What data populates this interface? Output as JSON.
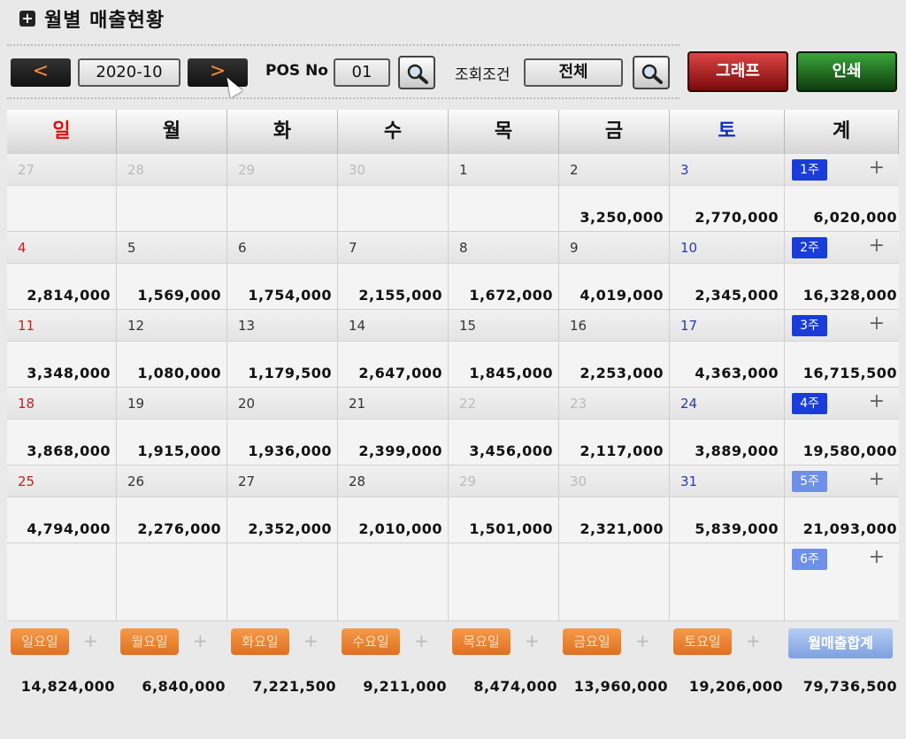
{
  "window": {
    "title": "월별 매출현황"
  },
  "toolbar": {
    "prev_label": "<",
    "next_label": ">",
    "month": "2020-10",
    "pos_label": "POS No",
    "pos_value": "01",
    "condition_label": "조회조건",
    "condition_value": "전체",
    "graph_label": "그래프",
    "print_label": "인쇄"
  },
  "weekdays": [
    "일",
    "월",
    "화",
    "수",
    "목",
    "금",
    "토",
    "계"
  ],
  "weeks": [
    {
      "badge": "1주",
      "total": "6,020,000",
      "days": [
        {
          "num": "27",
          "amount": ""
        },
        {
          "num": "28",
          "amount": ""
        },
        {
          "num": "29",
          "amount": ""
        },
        {
          "num": "30",
          "amount": ""
        },
        {
          "num": "1",
          "amount": ""
        },
        {
          "num": "2",
          "amount": "3,250,000"
        },
        {
          "num": "3",
          "amount": "2,770,000"
        }
      ]
    },
    {
      "badge": "2주",
      "total": "16,328,000",
      "days": [
        {
          "num": "4",
          "amount": "2,814,000"
        },
        {
          "num": "5",
          "amount": "1,569,000"
        },
        {
          "num": "6",
          "amount": "1,754,000"
        },
        {
          "num": "7",
          "amount": "2,155,000"
        },
        {
          "num": "8",
          "amount": "1,672,000"
        },
        {
          "num": "9",
          "amount": "4,019,000"
        },
        {
          "num": "10",
          "amount": "2,345,000"
        }
      ]
    },
    {
      "badge": "3주",
      "total": "16,715,500",
      "days": [
        {
          "num": "11",
          "amount": "3,348,000"
        },
        {
          "num": "12",
          "amount": "1,080,000"
        },
        {
          "num": "13",
          "amount": "1,179,500"
        },
        {
          "num": "14",
          "amount": "2,647,000"
        },
        {
          "num": "15",
          "amount": "1,845,000"
        },
        {
          "num": "16",
          "amount": "2,253,000"
        },
        {
          "num": "17",
          "amount": "4,363,000"
        }
      ]
    },
    {
      "badge": "4주",
      "total": "19,580,000",
      "days": [
        {
          "num": "18",
          "amount": "3,868,000"
        },
        {
          "num": "19",
          "amount": "1,915,000"
        },
        {
          "num": "20",
          "amount": "1,936,000"
        },
        {
          "num": "21",
          "amount": "2,399,000"
        },
        {
          "num": "22",
          "amount": "3,456,000"
        },
        {
          "num": "23",
          "amount": "2,117,000"
        },
        {
          "num": "24",
          "amount": "3,889,000"
        }
      ]
    },
    {
      "badge": "5주",
      "total": "21,093,000",
      "days": [
        {
          "num": "25",
          "amount": "4,794,000"
        },
        {
          "num": "26",
          "amount": "2,276,000"
        },
        {
          "num": "27",
          "amount": "2,352,000"
        },
        {
          "num": "28",
          "amount": "2,010,000"
        },
        {
          "num": "29",
          "amount": "1,501,000"
        },
        {
          "num": "30",
          "amount": "2,321,000"
        },
        {
          "num": "31",
          "amount": "5,839,000"
        }
      ]
    },
    {
      "badge": "6주"
    }
  ],
  "weekday_totals": [
    {
      "label": "일요일",
      "amount": "14,824,000"
    },
    {
      "label": "월요일",
      "amount": "6,840,000"
    },
    {
      "label": "화요일",
      "amount": "7,221,500"
    },
    {
      "label": "수요일",
      "amount": "9,211,000"
    },
    {
      "label": "목요일",
      "amount": "8,474,000"
    },
    {
      "label": "금요일",
      "amount": "13,960,000"
    },
    {
      "label": "토요일",
      "amount": "19,206,000"
    }
  ],
  "month_total": {
    "label": "월매출합계",
    "amount": "79,736,500"
  },
  "plus_label": "+",
  "colors": {
    "sunday": "#e01010",
    "saturday": "#1030c0",
    "week_badge": "#1a3cd8",
    "weekday_button": "#f08a3a"
  }
}
